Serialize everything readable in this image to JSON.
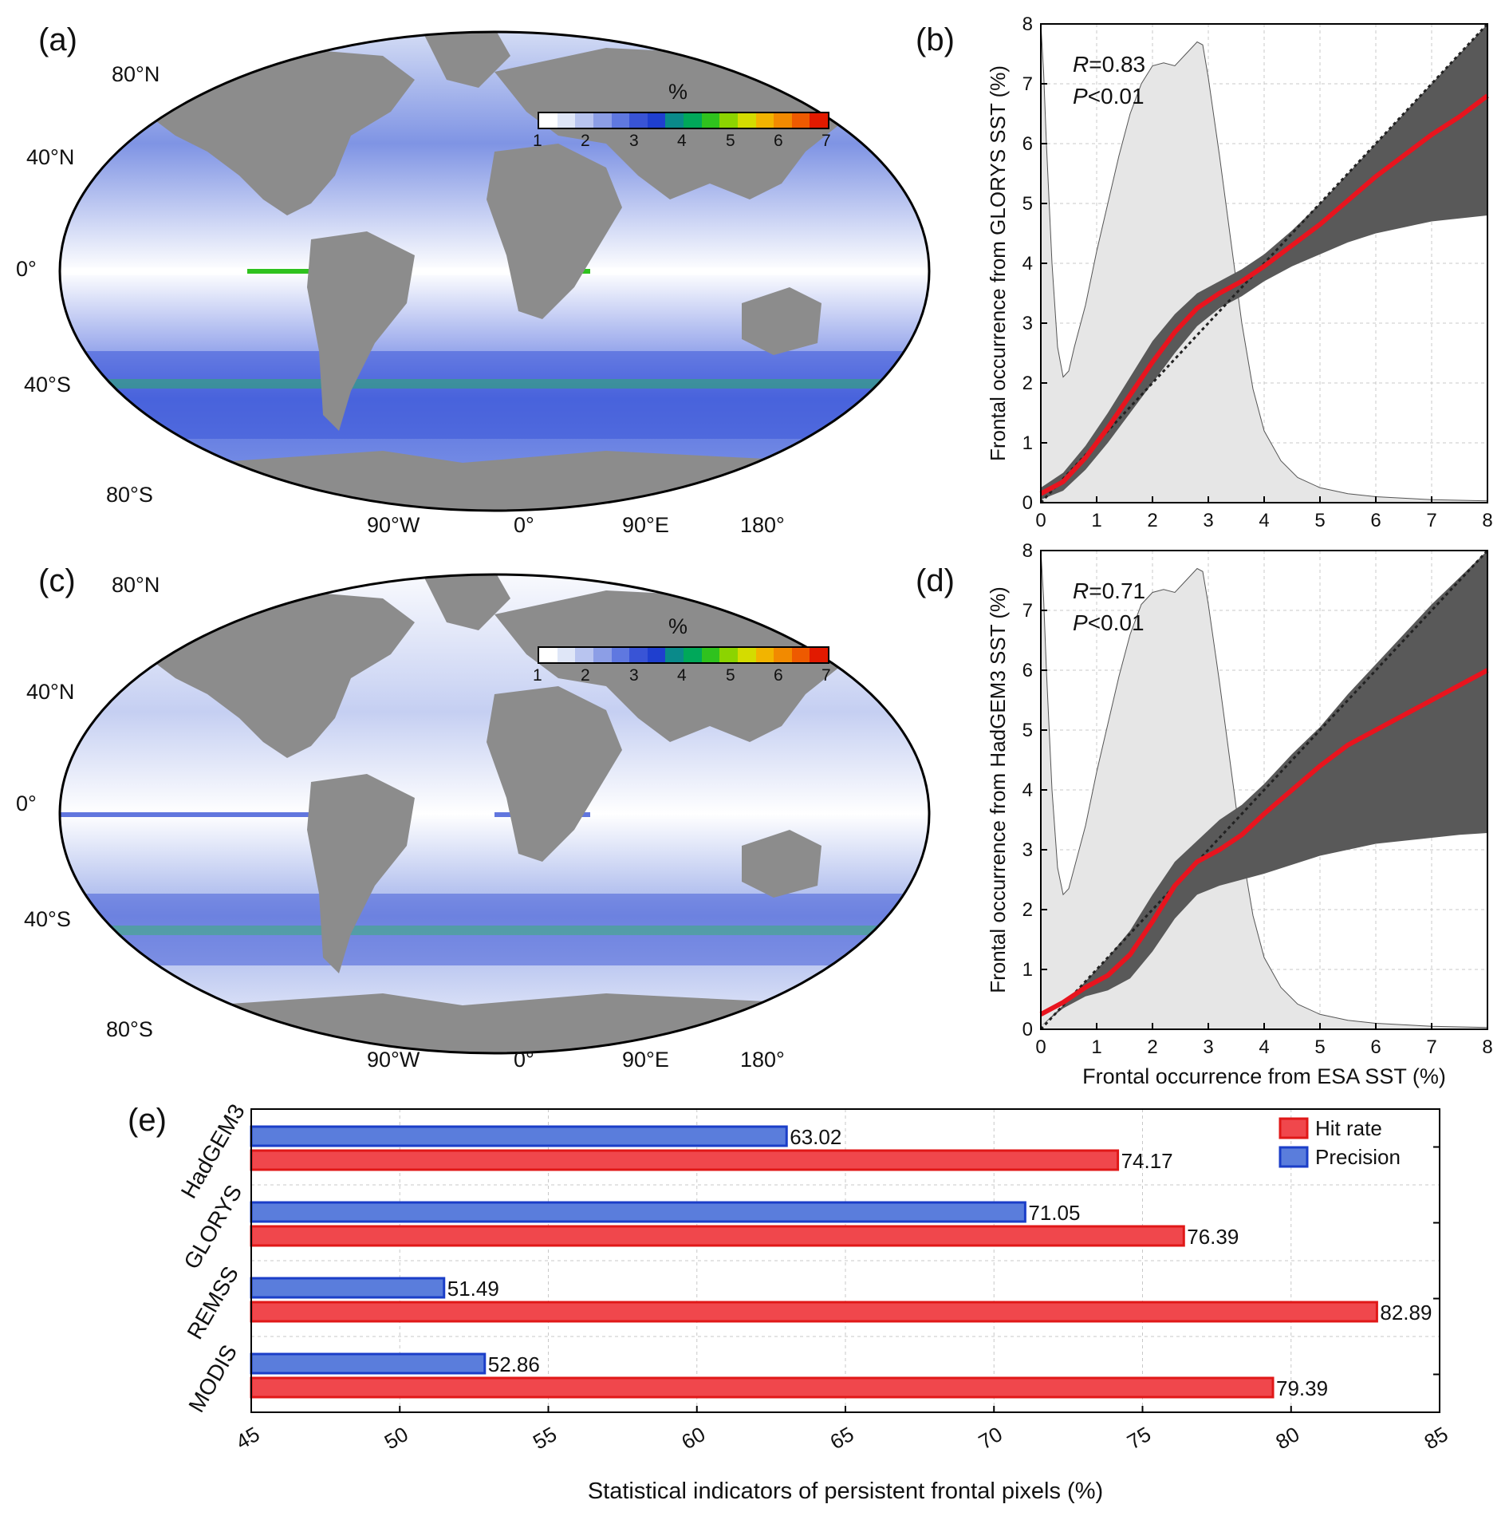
{
  "panels": {
    "a": {
      "label": "(a)"
    },
    "b": {
      "label": "(b)"
    },
    "c": {
      "label": "(c)"
    },
    "d": {
      "label": "(d)"
    },
    "e": {
      "label": "(e)"
    }
  },
  "maps": {
    "lat_labels": [
      "80°N",
      "40°N",
      "0°",
      "40°S",
      "80°S"
    ],
    "lon_labels": [
      "90°W",
      "0°",
      "90°E",
      "180°"
    ],
    "colorbar": {
      "title": "%",
      "ticks": [
        "1",
        "2",
        "3",
        "4",
        "5",
        "6",
        "7"
      ],
      "colors": [
        "#ffffff",
        "#dfe6f7",
        "#b8c4ef",
        "#8c9ee6",
        "#5f78e0",
        "#3954d6",
        "#1f3fcf",
        "#0a8a8a",
        "#00a85a",
        "#2fc21e",
        "#8cd400",
        "#d4dc00",
        "#f2b400",
        "#f28a00",
        "#ee5a00",
        "#e21a00"
      ]
    },
    "colors": {
      "land": "#8c8c8c",
      "ocean_low": "#ffffff",
      "ocean_mid": "#5a73e0",
      "ocean_high": "#1ec83c"
    }
  },
  "chart_data": [
    {
      "id": "b",
      "type": "line",
      "ylabel": "Frontal occurrence from GLORYS SST (%)",
      "xlabel": "",
      "xlim": [
        0,
        8
      ],
      "ylim": [
        0,
        8
      ],
      "xticks": [
        "0",
        "1",
        "2",
        "3",
        "4",
        "5",
        "6",
        "7",
        "8"
      ],
      "yticks": [
        "0",
        "1",
        "2",
        "3",
        "4",
        "5",
        "6",
        "7",
        "8"
      ],
      "grid": true,
      "annotation": {
        "r_symbol": "R",
        "r_value": "=0.83",
        "p_symbol": "P",
        "p_value": "<0.01"
      },
      "series": [
        {
          "role": "mean",
          "color": "#e8141e",
          "x": [
            0,
            0.4,
            0.8,
            1.2,
            1.6,
            2.0,
            2.4,
            2.8,
            3.2,
            3.6,
            4.0,
            4.5,
            5.0,
            5.5,
            6.0,
            6.5,
            7.0,
            7.5,
            8.0
          ],
          "y": [
            0.15,
            0.35,
            0.75,
            1.25,
            1.8,
            2.35,
            2.85,
            3.25,
            3.5,
            3.7,
            3.95,
            4.3,
            4.65,
            5.05,
            5.45,
            5.8,
            6.15,
            6.45,
            6.8
          ]
        },
        {
          "role": "spread",
          "color": "#595959",
          "x": [
            0,
            0.4,
            0.8,
            1.2,
            1.6,
            2.0,
            2.4,
            2.8,
            3.2,
            3.6,
            4.0,
            4.5,
            5.0,
            5.5,
            6.0,
            6.5,
            7.0,
            7.5,
            8.0
          ],
          "upper": [
            0.25,
            0.5,
            0.95,
            1.5,
            2.1,
            2.7,
            3.15,
            3.5,
            3.7,
            3.9,
            4.15,
            4.55,
            5.0,
            5.5,
            6.0,
            6.5,
            7.0,
            7.5,
            8.0
          ],
          "lower": [
            0.05,
            0.2,
            0.55,
            1.0,
            1.5,
            2.0,
            2.5,
            2.95,
            3.25,
            3.45,
            3.7,
            3.95,
            4.15,
            4.35,
            4.5,
            4.6,
            4.7,
            4.75,
            4.8
          ]
        },
        {
          "role": "one-to-one",
          "color": "#222222",
          "x": [
            0,
            8
          ],
          "y": [
            0,
            8
          ]
        },
        {
          "role": "distribution",
          "color": "#e6e6e6",
          "x": [
            0,
            0.05,
            0.1,
            0.2,
            0.3,
            0.4,
            0.5,
            0.6,
            0.8,
            1.0,
            1.2,
            1.4,
            1.6,
            1.8,
            2.0,
            2.2,
            2.4,
            2.6,
            2.8,
            2.9,
            3.0,
            3.2,
            3.4,
            3.6,
            3.8,
            4.0,
            4.3,
            4.6,
            5.0,
            5.5,
            6.0,
            7.0,
            8.0
          ],
          "y": [
            8.0,
            7.2,
            6.0,
            4.0,
            2.6,
            2.1,
            2.2,
            2.6,
            3.3,
            4.2,
            5.0,
            5.8,
            6.5,
            7.0,
            7.3,
            7.35,
            7.3,
            7.5,
            7.7,
            7.65,
            7.1,
            5.8,
            4.4,
            3.0,
            1.9,
            1.2,
            0.7,
            0.42,
            0.25,
            0.15,
            0.1,
            0.05,
            0.03
          ]
        }
      ]
    },
    {
      "id": "d",
      "type": "line",
      "ylabel": "Frontal occurrence from HadGEM3 SST (%)",
      "xlabel": "Frontal occurrence from ESA SST (%)",
      "xlim": [
        0,
        8
      ],
      "ylim": [
        0,
        8
      ],
      "xticks": [
        "0",
        "1",
        "2",
        "3",
        "4",
        "5",
        "6",
        "7",
        "8"
      ],
      "yticks": [
        "0",
        "1",
        "2",
        "3",
        "4",
        "5",
        "6",
        "7",
        "8"
      ],
      "grid": true,
      "annotation": {
        "r_symbol": "R",
        "r_value": "=0.71",
        "p_symbol": "P",
        "p_value": "<0.01"
      },
      "series": [
        {
          "role": "mean",
          "color": "#e8141e",
          "x": [
            0,
            0.4,
            0.8,
            1.2,
            1.6,
            2.0,
            2.4,
            2.8,
            3.2,
            3.6,
            4.0,
            4.5,
            5.0,
            5.5,
            6.0,
            6.5,
            7.0,
            7.5,
            8.0
          ],
          "y": [
            0.25,
            0.45,
            0.7,
            0.9,
            1.25,
            1.8,
            2.4,
            2.8,
            3.0,
            3.25,
            3.6,
            4.0,
            4.4,
            4.75,
            5.0,
            5.25,
            5.5,
            5.75,
            6.0
          ]
        },
        {
          "role": "spread",
          "color": "#595959",
          "x": [
            0,
            0.4,
            0.8,
            1.2,
            1.6,
            2.0,
            2.4,
            2.8,
            3.2,
            3.6,
            4.0,
            4.5,
            5.0,
            5.5,
            6.0,
            6.5,
            7.0,
            7.5,
            8.0
          ],
          "upper": [
            0.05,
            0.4,
            0.8,
            1.2,
            1.65,
            2.25,
            2.8,
            3.15,
            3.5,
            3.75,
            4.1,
            4.6,
            5.05,
            5.6,
            6.1,
            6.6,
            7.1,
            7.55,
            8.0
          ],
          "lower": [
            0.05,
            0.35,
            0.55,
            0.65,
            0.85,
            1.3,
            1.85,
            2.25,
            2.4,
            2.5,
            2.6,
            2.75,
            2.9,
            3.0,
            3.1,
            3.15,
            3.2,
            3.25,
            3.28
          ]
        },
        {
          "role": "one-to-one",
          "color": "#222222",
          "x": [
            0,
            8
          ],
          "y": [
            0,
            8
          ]
        },
        {
          "role": "distribution",
          "color": "#e6e6e6",
          "x": [
            0,
            0.05,
            0.1,
            0.2,
            0.3,
            0.4,
            0.5,
            0.6,
            0.8,
            1.0,
            1.2,
            1.4,
            1.6,
            1.8,
            2.0,
            2.2,
            2.4,
            2.6,
            2.8,
            2.9,
            3.0,
            3.2,
            3.4,
            3.6,
            3.8,
            4.0,
            4.3,
            4.6,
            5.0,
            5.5,
            6.0,
            7.0,
            8.0
          ],
          "y": [
            8.0,
            7.2,
            6.0,
            4.0,
            2.7,
            2.25,
            2.35,
            2.7,
            3.4,
            4.3,
            5.1,
            5.9,
            6.6,
            7.1,
            7.3,
            7.35,
            7.3,
            7.5,
            7.7,
            7.65,
            7.1,
            5.8,
            4.4,
            3.0,
            1.9,
            1.2,
            0.7,
            0.42,
            0.25,
            0.15,
            0.1,
            0.05,
            0.03
          ]
        }
      ]
    },
    {
      "id": "e",
      "type": "bar",
      "orientation": "horizontal",
      "xlabel": "Statistical indicators of persistent frontal pixels (%)",
      "ylabel": "",
      "xlim": [
        45,
        85
      ],
      "xticks": [
        "45",
        "50",
        "55",
        "60",
        "65",
        "70",
        "75",
        "80",
        "85"
      ],
      "grid": true,
      "legend_position": "top-right",
      "categories": [
        "HadGEM3",
        "GLORYS",
        "REMSS",
        "MODIS"
      ],
      "series": [
        {
          "name": "Hit rate",
          "color": "#f0474c",
          "edge": "#e01818",
          "values": [
            74.17,
            76.39,
            82.89,
            79.39
          ],
          "labels": [
            "74.17",
            "76.39",
            "82.89",
            "79.39"
          ]
        },
        {
          "name": "Precision",
          "color": "#5a7ddc",
          "edge": "#1b3ec8",
          "values": [
            63.02,
            71.05,
            51.49,
            52.86
          ],
          "labels": [
            "63.02",
            "71.05",
            "51.49",
            "52.86"
          ]
        }
      ]
    }
  ]
}
